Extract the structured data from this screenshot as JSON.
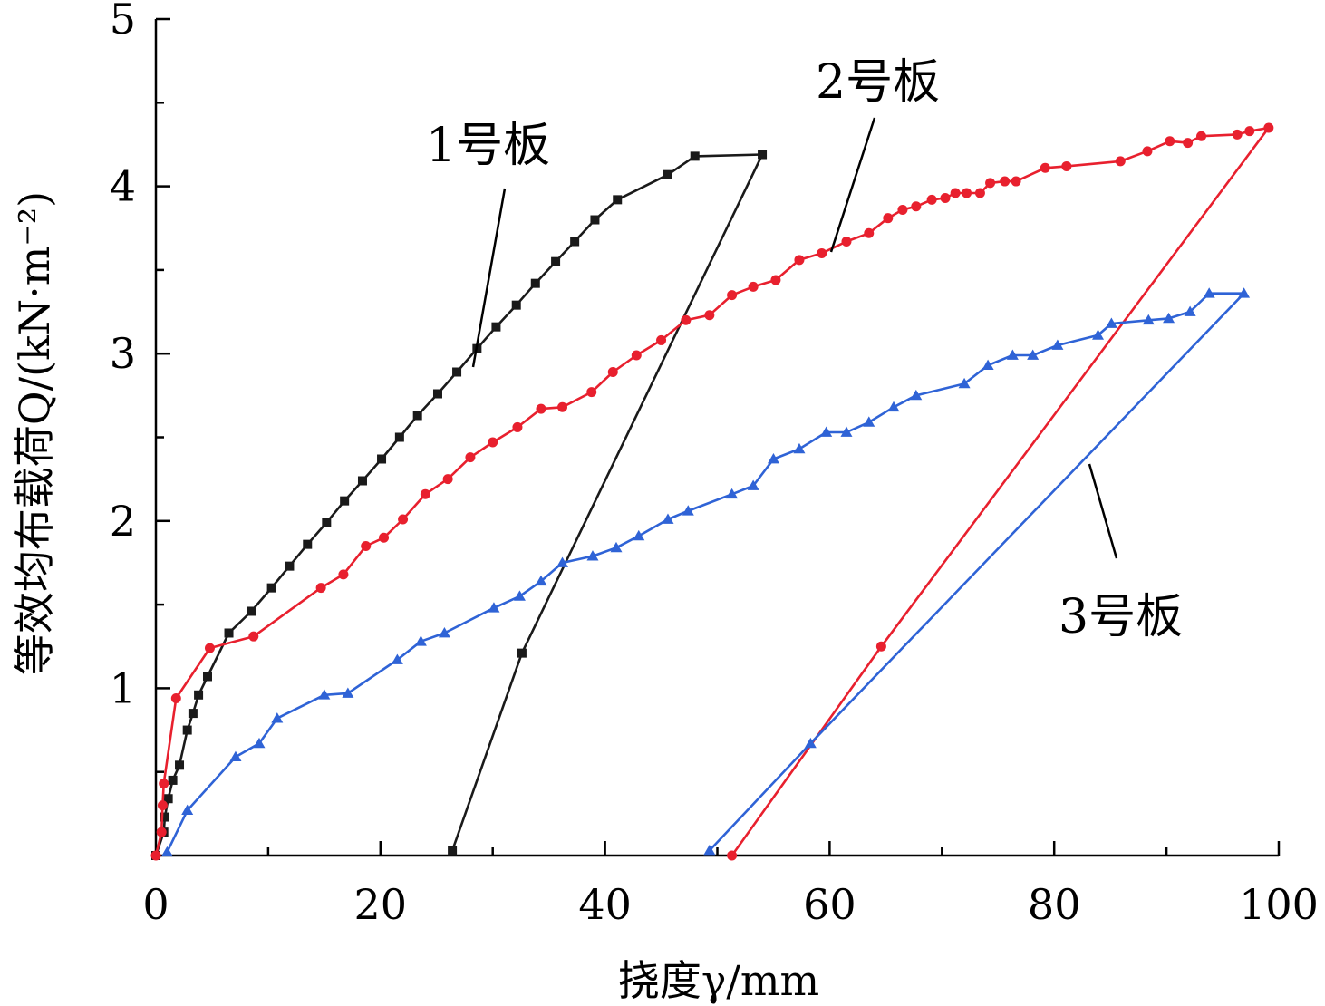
{
  "chart_data": {
    "type": "line",
    "xlabel": "挠度γ/mm",
    "ylabel": "等效均布载荷Q/(kN·m⁻²)",
    "xlim": [
      0,
      100
    ],
    "ylim": [
      0,
      5
    ],
    "xticks": [
      0,
      20,
      40,
      60,
      80,
      100
    ],
    "yticks": [
      1,
      2,
      3,
      4,
      5
    ],
    "grid": false,
    "legend": "none",
    "annotations": [
      "1号板",
      "2号板",
      "3号板"
    ],
    "series": [
      {
        "name": "1号板",
        "color": "#1a1a1a",
        "marker": "square",
        "x": [
          0,
          0.7,
          0.8,
          1.1,
          1.5,
          2.1,
          2.8,
          3.3,
          3.8,
          4.6,
          6.5,
          8.5,
          10.3,
          11.9,
          13.5,
          15.2,
          16.8,
          18.4,
          20.1,
          21.7,
          23.3,
          25.1,
          26.8,
          28.6,
          30.3,
          32.1,
          33.8,
          35.6,
          37.3,
          39.1,
          41.1,
          45.6,
          48.0,
          54.0,
          32.6,
          26.4
        ],
        "y": [
          0,
          0.14,
          0.23,
          0.34,
          0.45,
          0.54,
          0.75,
          0.85,
          0.96,
          1.07,
          1.33,
          1.46,
          1.6,
          1.73,
          1.86,
          1.99,
          2.12,
          2.24,
          2.37,
          2.5,
          2.63,
          2.76,
          2.89,
          3.03,
          3.16,
          3.29,
          3.42,
          3.55,
          3.67,
          3.8,
          3.92,
          4.07,
          4.18,
          4.19,
          1.21,
          0.03
        ]
      },
      {
        "name": "2号板",
        "color": "#e8202e",
        "marker": "circle",
        "x": [
          0,
          0.5,
          0.6,
          0.7,
          1.8,
          4.8,
          8.7,
          14.7,
          16.7,
          18.7,
          20.3,
          22.0,
          24.0,
          26.0,
          28.0,
          30.0,
          32.2,
          34.3,
          36.2,
          38.8,
          40.7,
          42.8,
          45.0,
          47.2,
          49.3,
          51.3,
          53.2,
          55.2,
          57.3,
          59.3,
          61.5,
          63.5,
          65.2,
          66.5,
          67.7,
          69.1,
          70.3,
          71.2,
          72.2,
          73.4,
          74.3,
          75.6,
          76.6,
          79.2,
          81.1,
          85.9,
          88.3,
          90.3,
          91.9,
          93.1,
          96.3,
          97.4,
          99.1,
          64.6,
          51.3
        ],
        "y": [
          0,
          0.14,
          0.3,
          0.43,
          0.94,
          1.24,
          1.31,
          1.6,
          1.68,
          1.85,
          1.9,
          2.01,
          2.16,
          2.25,
          2.38,
          2.47,
          2.56,
          2.67,
          2.68,
          2.77,
          2.89,
          2.99,
          3.08,
          3.2,
          3.23,
          3.35,
          3.4,
          3.44,
          3.56,
          3.6,
          3.67,
          3.72,
          3.81,
          3.86,
          3.88,
          3.92,
          3.93,
          3.96,
          3.96,
          3.96,
          4.02,
          4.03,
          4.03,
          4.11,
          4.12,
          4.15,
          4.21,
          4.27,
          4.26,
          4.3,
          4.31,
          4.33,
          4.35,
          1.25,
          0
        ]
      },
      {
        "name": "3号板",
        "color": "#2f63d6",
        "marker": "triangle",
        "x": [
          1.0,
          2.8,
          7.1,
          9.2,
          10.8,
          15.0,
          17.1,
          21.5,
          23.6,
          25.7,
          30.1,
          32.4,
          34.3,
          36.2,
          38.9,
          41.0,
          43.0,
          45.6,
          47.4,
          51.3,
          53.2,
          55.0,
          57.3,
          59.7,
          61.5,
          63.5,
          65.7,
          67.7,
          72.0,
          74.1,
          76.3,
          78.1,
          80.3,
          83.9,
          85.1,
          88.4,
          90.2,
          92.1,
          93.8,
          96.9,
          58.3,
          49.3
        ],
        "y": [
          0.02,
          0.27,
          0.59,
          0.67,
          0.82,
          0.96,
          0.97,
          1.17,
          1.28,
          1.33,
          1.48,
          1.55,
          1.64,
          1.75,
          1.79,
          1.84,
          1.91,
          2.01,
          2.06,
          2.16,
          2.21,
          2.37,
          2.43,
          2.53,
          2.53,
          2.59,
          2.68,
          2.75,
          2.82,
          2.93,
          2.99,
          2.99,
          3.05,
          3.11,
          3.18,
          3.2,
          3.21,
          3.25,
          3.36,
          3.36,
          0.67,
          0.03
        ]
      }
    ]
  }
}
